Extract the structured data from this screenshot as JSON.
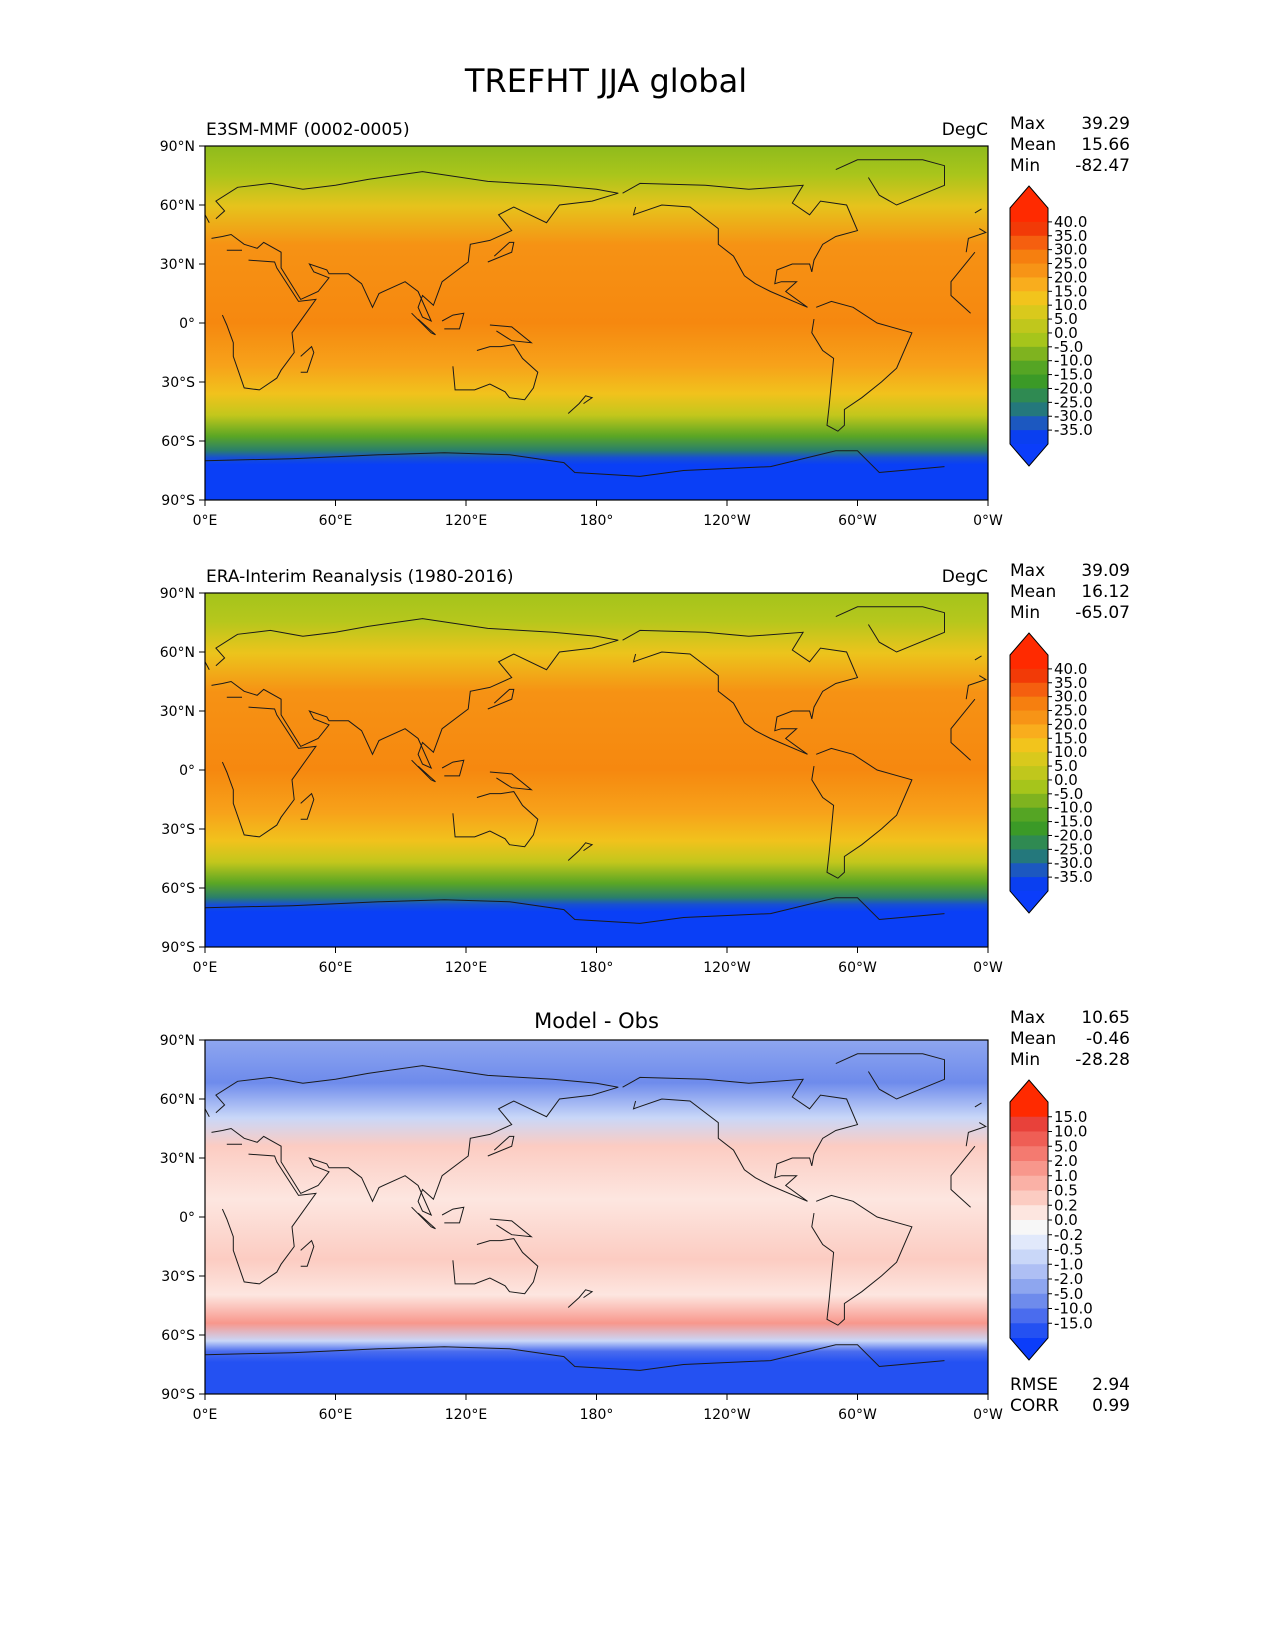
{
  "figure": {
    "title": "TREFHT JJA global"
  },
  "chart_data": [
    {
      "type": "heatmap",
      "title": "E3SM-MMF (0002-0005)",
      "units": "DegC",
      "stats": {
        "labels": [
          "Max",
          "Mean",
          "Min"
        ],
        "values": [
          "39.29",
          "15.66",
          "-82.47"
        ]
      },
      "x_ticks": [
        "0°E",
        "60°E",
        "120°E",
        "180°",
        "120°W",
        "60°W",
        "0°W"
      ],
      "y_ticks": [
        "90°N",
        "60°N",
        "30°N",
        "0°",
        "30°S",
        "60°S",
        "90°S"
      ],
      "xlim": [
        0,
        360
      ],
      "ylim": [
        -90,
        90
      ],
      "colorbar": {
        "levels": [
          "40.0",
          "35.0",
          "30.0",
          "25.0",
          "20.0",
          "15.0",
          "10.0",
          "5.0",
          "0.0",
          "-5.0",
          "-10.0",
          "-15.0",
          "-20.0",
          "-25.0",
          "-30.0",
          "-35.0"
        ],
        "colors": [
          "#f23a07",
          "#f55f0f",
          "#f67f0f",
          "#f79416",
          "#f9ad1d",
          "#f2c41c",
          "#d9c91c",
          "#c0c71c",
          "#a6c51b",
          "#7fb31f",
          "#55a524",
          "#3b9a27",
          "#2f8a52",
          "#24787c",
          "#1c58c0",
          "#0a3ff0"
        ],
        "over_color": "#ff2a00",
        "under_color": "#0b3dfa"
      }
    },
    {
      "type": "heatmap",
      "title": "ERA-Interim Reanalysis (1980-2016)",
      "units": "DegC",
      "stats": {
        "labels": [
          "Max",
          "Mean",
          "Min"
        ],
        "values": [
          "39.09",
          "16.12",
          "-65.07"
        ]
      },
      "x_ticks": [
        "0°E",
        "60°E",
        "120°E",
        "180°",
        "120°W",
        "60°W",
        "0°W"
      ],
      "y_ticks": [
        "90°N",
        "60°N",
        "30°N",
        "0°",
        "30°S",
        "60°S",
        "90°S"
      ],
      "xlim": [
        0,
        360
      ],
      "ylim": [
        -90,
        90
      ],
      "colorbar": {
        "levels": [
          "40.0",
          "35.0",
          "30.0",
          "25.0",
          "20.0",
          "15.0",
          "10.0",
          "5.0",
          "0.0",
          "-5.0",
          "-10.0",
          "-15.0",
          "-20.0",
          "-25.0",
          "-30.0",
          "-35.0"
        ],
        "colors": [
          "#f23a07",
          "#f55f0f",
          "#f67f0f",
          "#f79416",
          "#f9ad1d",
          "#f2c41c",
          "#d9c91c",
          "#c0c71c",
          "#a6c51b",
          "#7fb31f",
          "#55a524",
          "#3b9a27",
          "#2f8a52",
          "#24787c",
          "#1c58c0",
          "#0a3ff0"
        ],
        "over_color": "#ff2a00",
        "under_color": "#0b3dfa"
      }
    },
    {
      "type": "heatmap",
      "title": "Model - Obs",
      "units": "",
      "stats": {
        "labels": [
          "Max",
          "Mean",
          "Min"
        ],
        "values": [
          "10.65",
          "-0.46",
          "-28.28"
        ]
      },
      "metrics": {
        "labels": [
          "RMSE",
          "CORR"
        ],
        "values": [
          "2.94",
          "0.99"
        ]
      },
      "x_ticks": [
        "0°E",
        "60°E",
        "120°E",
        "180°",
        "120°W",
        "60°W",
        "0°W"
      ],
      "y_ticks": [
        "90°N",
        "60°N",
        "30°N",
        "0°",
        "30°S",
        "60°S",
        "90°S"
      ],
      "xlim": [
        0,
        360
      ],
      "ylim": [
        -90,
        90
      ],
      "colorbar": {
        "levels": [
          "15.0",
          "10.0",
          "5.0",
          "2.0",
          "1.0",
          "0.5",
          "0.2",
          "0.0",
          "-0.2",
          "-0.5",
          "-1.0",
          "-2.0",
          "-5.0",
          "-10.0",
          "-15.0"
        ],
        "colors": [
          "#e8413a",
          "#ef5e55",
          "#f47a70",
          "#f8978c",
          "#fab1a6",
          "#fcccc2",
          "#fde6e0",
          "#f7f7f7",
          "#e1e9fb",
          "#c9d7f8",
          "#aebff4",
          "#8ea6ef",
          "#6e8bec",
          "#4a6cee",
          "#2451f2"
        ],
        "over_color": "#ff2a00",
        "under_color": "#0b3dfa"
      }
    }
  ]
}
